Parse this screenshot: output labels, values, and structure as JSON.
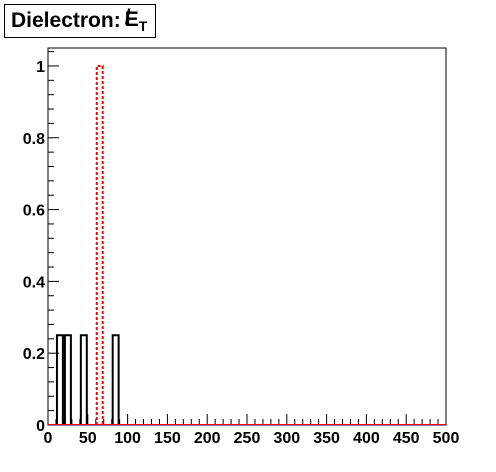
{
  "chart_data": {
    "type": "bar",
    "title": "Dielectron:",
    "title_symbol": "E",
    "title_symbol_subscript": "T",
    "xlim": [
      0,
      500
    ],
    "ylim": [
      0,
      1.05
    ],
    "x_ticks": [
      "0",
      "50",
      "100",
      "150",
      "200",
      "250",
      "300",
      "350",
      "400",
      "450",
      "500"
    ],
    "y_ticks": [
      "0",
      "0.2",
      "0.4",
      "0.6",
      "0.8",
      "1"
    ],
    "bin_width": 10,
    "series": [
      {
        "style": "solid",
        "color": "#000000",
        "bins": [
          {
            "x0": 10,
            "x1": 20,
            "value": 0.25
          },
          {
            "x0": 20,
            "x1": 30,
            "value": 0.25
          },
          {
            "x0": 40,
            "x1": 50,
            "value": 0.25
          },
          {
            "x0": 80,
            "x1": 90,
            "value": 0.25
          }
        ]
      },
      {
        "style": "dashed",
        "color": "#ff0000",
        "bins": [
          {
            "x0": 60,
            "x1": 70,
            "value": 1.0
          }
        ]
      }
    ],
    "grid": false,
    "legend": "none"
  }
}
